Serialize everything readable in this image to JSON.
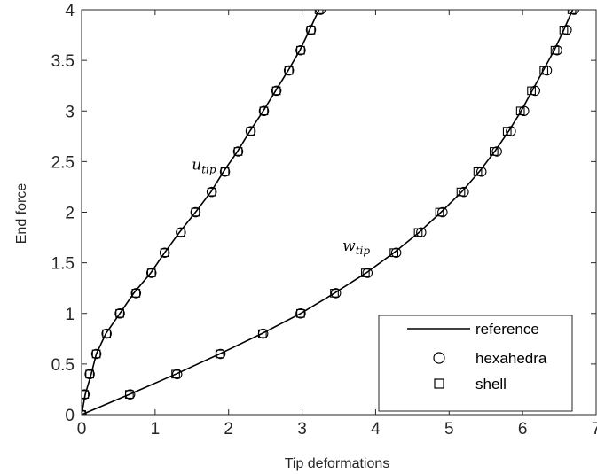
{
  "chart_data": {
    "type": "line",
    "title": "",
    "xlabel": "Tip deformations",
    "ylabel": "End force",
    "xlim": [
      0,
      7
    ],
    "ylim": [
      0,
      4
    ],
    "grid": false,
    "legend_position": "bottom-right",
    "x_ticks": [
      "0",
      "1",
      "2",
      "3",
      "4",
      "5",
      "6",
      "7"
    ],
    "y_ticks": [
      "0",
      "0.5",
      "1",
      "1.5",
      "2",
      "2.5",
      "3",
      "3.5",
      "4"
    ],
    "annotations": [
      {
        "base": "u",
        "sub": "tip",
        "at": [
          1.5,
          2.42
        ]
      },
      {
        "base": "w",
        "sub": "tip",
        "at": [
          3.55,
          1.62
        ]
      }
    ],
    "series": [
      {
        "name": "reference",
        "style": "line",
        "color": "#000000",
        "curves": [
          {
            "x": [
              0,
              0.05,
              0.13,
              0.2,
              0.33,
              0.52,
              0.71,
              0.94,
              1.13,
              1.33,
              1.55,
              1.76,
              1.93,
              2.12,
              2.29,
              2.47,
              2.64,
              2.81,
              2.97,
              3.1,
              3.23
            ],
            "y": [
              0,
              0.2,
              0.4,
              0.6,
              0.8,
              1.0,
              1.2,
              1.4,
              1.6,
              1.8,
              2.0,
              2.2,
              2.4,
              2.6,
              2.8,
              3.0,
              3.2,
              3.4,
              3.6,
              3.8,
              4.0
            ]
          },
          {
            "x": [
              0,
              0.65,
              1.28,
              1.88,
              2.45,
              2.98,
              3.44,
              3.87,
              4.25,
              4.59,
              4.89,
              5.17,
              5.41,
              5.62,
              5.81,
              5.98,
              6.13,
              6.28,
              6.43,
              6.56,
              6.68
            ],
            "y": [
              0,
              0.2,
              0.4,
              0.6,
              0.8,
              1.0,
              1.2,
              1.4,
              1.6,
              1.8,
              2.0,
              2.2,
              2.4,
              2.6,
              2.8,
              3.0,
              3.2,
              3.4,
              3.6,
              3.8,
              4.0
            ]
          }
        ]
      },
      {
        "name": "hexahedra",
        "style": "marker-circle",
        "color": "#000000",
        "curves": [
          {
            "x": [
              0,
              0.04,
              0.11,
              0.2,
              0.34,
              0.52,
              0.74,
              0.95,
              1.13,
              1.35,
              1.55,
              1.77,
              1.95,
              2.13,
              2.3,
              2.48,
              2.65,
              2.82,
              2.98,
              3.12,
              3.25
            ],
            "y": [
              0,
              0.2,
              0.4,
              0.6,
              0.8,
              1.0,
              1.2,
              1.4,
              1.6,
              1.8,
              2.0,
              2.2,
              2.4,
              2.6,
              2.8,
              3.0,
              3.2,
              3.4,
              3.6,
              3.8,
              4.0
            ]
          },
          {
            "x": [
              0,
              0.66,
              1.3,
              1.89,
              2.47,
              2.98,
              3.46,
              3.89,
              4.28,
              4.62,
              4.91,
              5.2,
              5.44,
              5.65,
              5.84,
              6.02,
              6.17,
              6.33,
              6.47,
              6.6,
              6.7
            ],
            "y": [
              0,
              0.2,
              0.4,
              0.6,
              0.8,
              1.0,
              1.2,
              1.4,
              1.6,
              1.8,
              2.0,
              2.2,
              2.4,
              2.6,
              2.8,
              3.0,
              3.2,
              3.4,
              3.6,
              3.8,
              4.0
            ]
          }
        ]
      },
      {
        "name": "shell",
        "style": "marker-square",
        "color": "#000000",
        "curves": [
          {
            "x": [
              0,
              0.04,
              0.11,
              0.2,
              0.34,
              0.52,
              0.74,
              0.95,
              1.13,
              1.35,
              1.55,
              1.77,
              1.95,
              2.13,
              2.3,
              2.48,
              2.65,
              2.82,
              2.98,
              3.12,
              3.23
            ],
            "y": [
              0,
              0.2,
              0.4,
              0.6,
              0.8,
              1.0,
              1.2,
              1.4,
              1.6,
              1.8,
              2.0,
              2.2,
              2.4,
              2.6,
              2.8,
              3.0,
              3.2,
              3.4,
              3.6,
              3.8,
              4.0
            ]
          },
          {
            "x": [
              0,
              0.65,
              1.28,
              1.88,
              2.46,
              2.98,
              3.44,
              3.86,
              4.25,
              4.58,
              4.87,
              5.16,
              5.39,
              5.61,
              5.79,
              5.97,
              6.12,
              6.29,
              6.44,
              6.56,
              6.67
            ],
            "y": [
              0,
              0.2,
              0.4,
              0.6,
              0.8,
              1.0,
              1.2,
              1.4,
              1.6,
              1.8,
              2.0,
              2.2,
              2.4,
              2.6,
              2.8,
              3.0,
              3.2,
              3.4,
              3.6,
              3.8,
              4.0
            ]
          }
        ]
      }
    ]
  }
}
